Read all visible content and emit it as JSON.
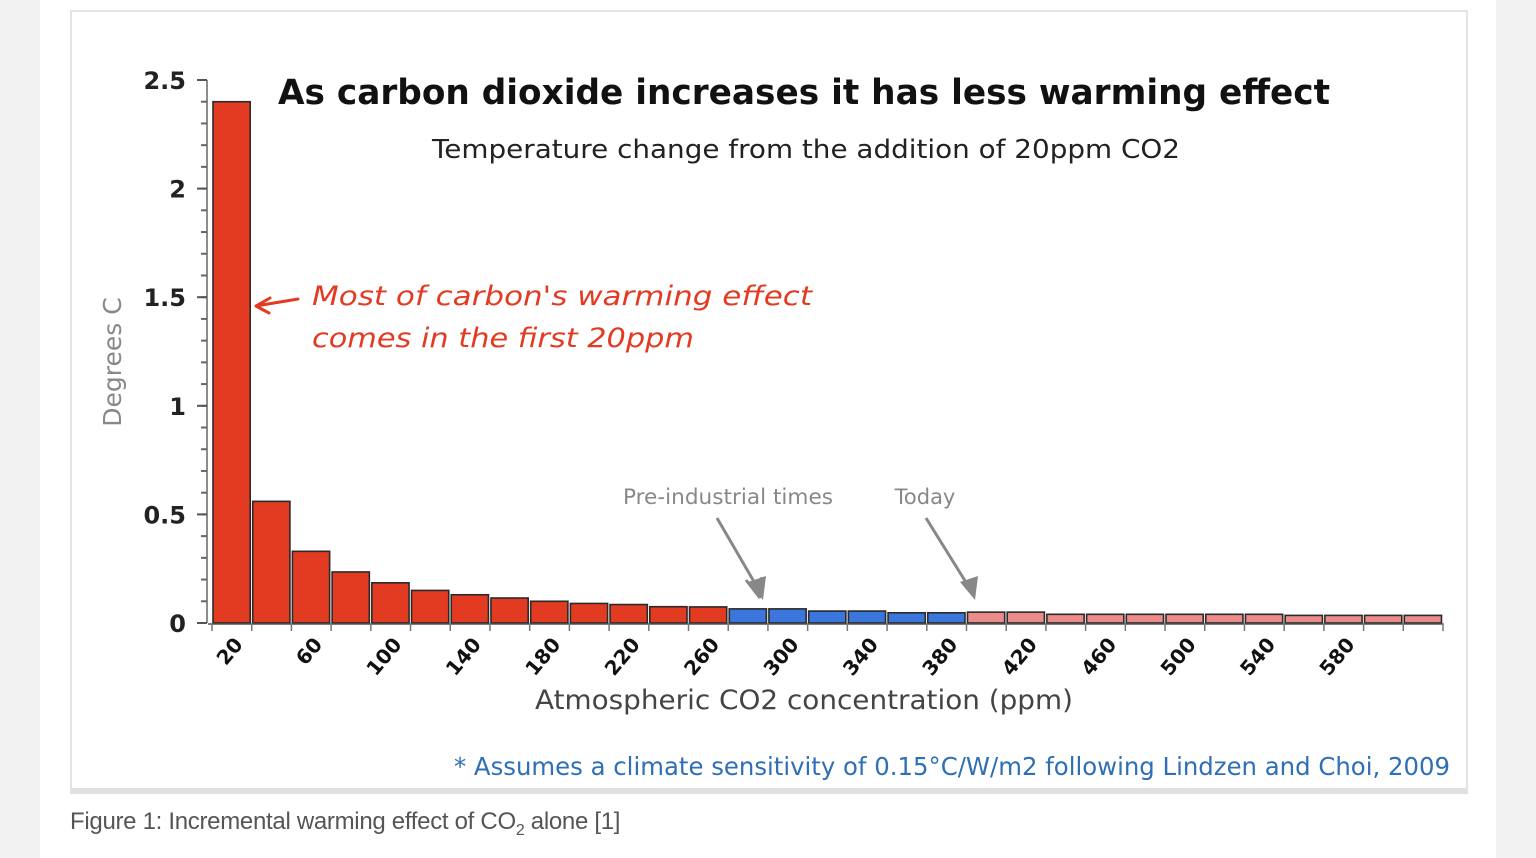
{
  "figure": {
    "caption_prefix": "Figure 1: Incremental warming effect of CO",
    "caption_sub": "2",
    "caption_suffix": " alone [1]"
  },
  "chart_data": {
    "type": "bar",
    "title": "As carbon dioxide increases it has less warming effect",
    "subtitle": "Temperature change from the addition of 20ppm CO2",
    "xlabel": "Atmospheric CO2 concentration (ppm)",
    "ylabel": "Degrees C",
    "ylim": [
      0,
      2.5
    ],
    "yticks": [
      "0",
      "0.5",
      "1",
      "1.5",
      "2",
      "2.5"
    ],
    "ytick_values": [
      0,
      0.5,
      1,
      1.5,
      2,
      2.5
    ],
    "xtick_labels": [
      "20",
      "60",
      "100",
      "140",
      "180",
      "220",
      "260",
      "300",
      "340",
      "380",
      "420",
      "460",
      "500",
      "540",
      "580"
    ],
    "categories": [
      20,
      40,
      60,
      80,
      100,
      120,
      140,
      160,
      180,
      200,
      220,
      240,
      260,
      280,
      300,
      320,
      340,
      360,
      380,
      400,
      420,
      440,
      460,
      480,
      500,
      520,
      540,
      560,
      580,
      600,
      620
    ],
    "values": [
      2.4,
      0.56,
      0.33,
      0.235,
      0.185,
      0.15,
      0.13,
      0.115,
      0.1,
      0.09,
      0.085,
      0.075,
      0.074,
      0.065,
      0.065,
      0.055,
      0.055,
      0.047,
      0.047,
      0.05,
      0.05,
      0.04,
      0.04,
      0.04,
      0.04,
      0.04,
      0.04,
      0.035,
      0.035,
      0.035,
      0.035
    ],
    "bar_groups": [
      {
        "name": "pre-industrial-range",
        "from": 20,
        "to": 260,
        "color": "#e33b22"
      },
      {
        "name": "industrial-era",
        "from": 280,
        "to": 380,
        "color": "#3b76dc"
      },
      {
        "name": "future",
        "from": 400,
        "to": 620,
        "color": "#ec8c8a"
      }
    ],
    "annotations": [
      {
        "name": "first-20ppm-note",
        "lines": [
          "Most of carbon's warming effect",
          "comes in the first 20ppm"
        ],
        "color": "#e33b22",
        "points_to": 20
      },
      {
        "name": "pre-industrial-note",
        "text": "Pre-industrial times",
        "points_to": 280,
        "color": "#888888"
      },
      {
        "name": "today-note",
        "text": "Today",
        "points_to": 380,
        "color": "#888888"
      }
    ],
    "footnote": "* Assumes a climate sensitivity of 0.15°C/W/m2 following Lindzen and Choi, 2009",
    "footnote_color": "#2f6fb5",
    "grid": false,
    "legend": "none"
  }
}
